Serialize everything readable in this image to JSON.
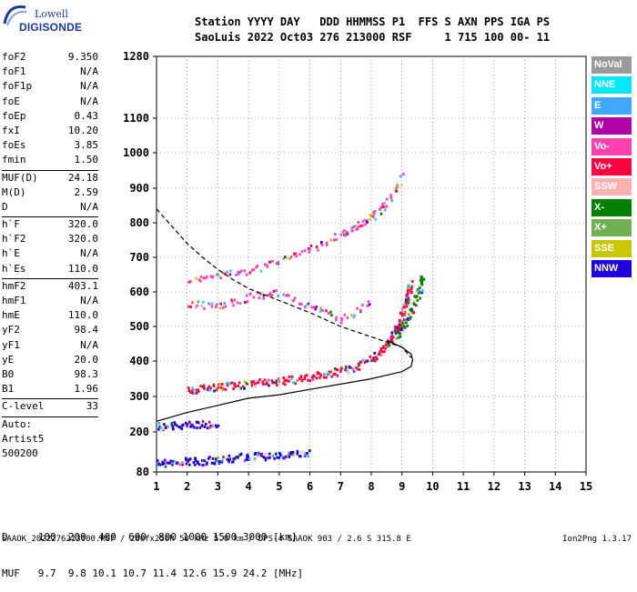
{
  "logo": {
    "line1": "Lowell",
    "line2": "DIGISONDE"
  },
  "header": {
    "row1": "Station YYYY DAY   DDD HHMMSS P1  FFS S AXN PPS IGA PS",
    "row2": "SaoLuis 2022 Oct03 276 213000 RSF     1 715 100 00- 11"
  },
  "params": {
    "group1": [
      {
        "label": "foF2",
        "value": "9.350"
      },
      {
        "label": "foF1",
        "value": "N/A"
      },
      {
        "label": "foF1p",
        "value": "N/A"
      },
      {
        "label": "foE",
        "value": "N/A"
      },
      {
        "label": "foEp",
        "value": "0.43"
      },
      {
        "label": "fxI",
        "value": "10.20"
      },
      {
        "label": "foEs",
        "value": "3.85"
      },
      {
        "label": "fmin",
        "value": "1.50"
      }
    ],
    "group2": [
      {
        "label": "MUF(D)",
        "value": "24.18"
      },
      {
        "label": "M(D)",
        "value": "2.59"
      },
      {
        "label": "D",
        "value": "N/A"
      }
    ],
    "group3": [
      {
        "label": "h`F",
        "value": "320.0"
      },
      {
        "label": "h`F2",
        "value": "320.0"
      },
      {
        "label": "h`E",
        "value": "N/A"
      },
      {
        "label": "h`Es",
        "value": "110.0"
      }
    ],
    "group4": [
      {
        "label": "hmF2",
        "value": "403.1"
      },
      {
        "label": "hmF1",
        "value": "N/A"
      },
      {
        "label": "hmE",
        "value": "110.0"
      },
      {
        "label": "yF2",
        "value": "98.4"
      },
      {
        "label": "yF1",
        "value": "N/A"
      },
      {
        "label": "yE",
        "value": "20.0"
      },
      {
        "label": "B0",
        "value": "98.3"
      },
      {
        "label": "B1",
        "value": "1.96"
      }
    ],
    "group5": [
      {
        "label": "C-level",
        "value": "33"
      }
    ],
    "auto": [
      "Auto:",
      "Artist5",
      "500200"
    ]
  },
  "legend": [
    {
      "label": "NoVal",
      "color": "#9a9a9a"
    },
    {
      "label": "NNE",
      "color": "#00e8ff"
    },
    {
      "label": "E",
      "color": "#40a8ff"
    },
    {
      "label": "W",
      "color": "#b000a8"
    },
    {
      "label": "Vo-",
      "color": "#ff40b0"
    },
    {
      "label": "Vo+",
      "color": "#ff0040"
    },
    {
      "label": "SSW",
      "color": "#ffb0b0"
    },
    {
      "label": "X-",
      "color": "#008000"
    },
    {
      "label": "X+",
      "color": "#70b050"
    },
    {
      "label": "SSE",
      "color": "#c8c800"
    },
    {
      "label": "NNW",
      "color": "#2000e0"
    }
  ],
  "footer": {
    "row1": "D     100  200  400  600  800 1000 1500 3000 [km]",
    "row2": "MUF   9.7  9.8 10.1 10.7 11.4 12.6 15.9 24.2 [MHz]",
    "file": "SAAOK_2022276213000.RSF / 280fx256h 50 kHz 5.0 km / DPS-4 SAAOK 903 / 2.6 S 315.8 E",
    "version": "Ion2Png 1.3.17"
  },
  "chart_data": {
    "type": "scatter",
    "title": "",
    "xlabel": "",
    "ylabel": "",
    "xlim": [
      1,
      15
    ],
    "ylim": [
      80,
      1280
    ],
    "xticks": [
      1,
      2,
      3,
      4,
      5,
      6,
      7,
      8,
      9,
      10,
      11,
      12,
      13,
      14,
      15
    ],
    "yticks": [
      80,
      200,
      300,
      400,
      500,
      600,
      700,
      800,
      900,
      1000,
      1100,
      1280
    ],
    "y_axis": "piecewise-linear",
    "grid": true,
    "legend_position": "right",
    "series": [
      {
        "name": "F2 trace (ordinary)",
        "color": "#ff0040",
        "x": [
          2.0,
          2.5,
          3.0,
          3.5,
          4.0,
          4.5,
          5.0,
          5.5,
          6.0,
          6.5,
          7.0,
          7.5,
          8.0,
          8.3,
          8.5,
          8.7,
          8.9,
          9.0,
          9.1,
          9.2,
          9.25
        ],
        "y": [
          320,
          325,
          328,
          333,
          338,
          343,
          346,
          350,
          357,
          365,
          375,
          388,
          410,
          430,
          455,
          480,
          510,
          540,
          570,
          600,
          630
        ]
      },
      {
        "name": "F2 trace (extraordinary)",
        "color": "#008000",
        "x": [
          8.8,
          9.0,
          9.2,
          9.4,
          9.55,
          9.65
        ],
        "y": [
          470,
          500,
          530,
          570,
          610,
          650
        ]
      },
      {
        "name": "Second hop F",
        "color": "#ff40b0",
        "x": [
          2.0,
          3.0,
          4.0,
          5.0,
          6.0,
          7.0,
          7.5,
          8.0,
          8.5,
          9.0
        ],
        "y": [
          630,
          650,
          665,
          690,
          725,
          770,
          790,
          820,
          860,
          940
        ]
      },
      {
        "name": "Es",
        "color": "#2000e0",
        "x": [
          1.0,
          1.5,
          2.0,
          2.5,
          3.0,
          3.5,
          4.0,
          4.5,
          5.0,
          5.5,
          6.0
        ],
        "y": [
          110,
          110,
          115,
          115,
          120,
          125,
          130,
          130,
          135,
          140,
          140
        ]
      },
      {
        "name": "Es second hop",
        "color": "#2000e0",
        "x": [
          1.0,
          1.5,
          2.0,
          2.5,
          3.0
        ],
        "y": [
          220,
          220,
          225,
          225,
          220
        ]
      },
      {
        "name": "Es multiple reflections",
        "color": "#ff40b0",
        "x": [
          2.0,
          3.0,
          4.0,
          5.0,
          6.0,
          7.0,
          8.0
        ],
        "y": [
          570,
          560,
          590,
          600,
          560,
          520,
          575
        ]
      }
    ],
    "profile_curve": {
      "name": "Electron density profile",
      "color": "#000000",
      "x": [
        1.0,
        2.0,
        3.0,
        4.0,
        5.0,
        6.0,
        7.0,
        8.0,
        8.5,
        9.0,
        9.3,
        9.35,
        9.3,
        9.0,
        8.5
      ],
      "y": [
        230,
        255,
        275,
        295,
        305,
        320,
        335,
        350,
        360,
        370,
        385,
        403,
        420,
        440,
        460
      ]
    },
    "muf_curve": {
      "name": "MUF / oblique curve",
      "color": "#000000",
      "dashed": true,
      "x": [
        1.0,
        1.5,
        2.0,
        2.5,
        3.0,
        3.5,
        4.0,
        5.0,
        6.0,
        7.0,
        8.0,
        9.0,
        9.3
      ],
      "y": [
        840,
        790,
        740,
        700,
        665,
        635,
        610,
        575,
        540,
        500,
        470,
        440,
        410
      ]
    }
  }
}
